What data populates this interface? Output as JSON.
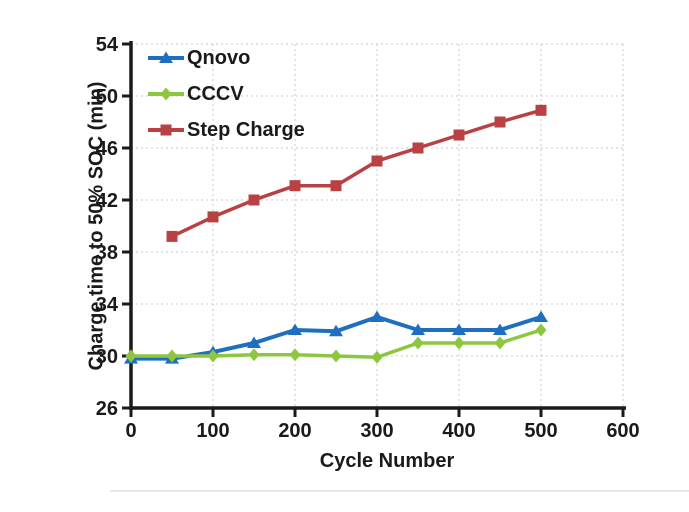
{
  "figure": {
    "background": "#ffffff",
    "divider_color": "#e8e8e8"
  },
  "chart_data": {
    "type": "line",
    "title": "",
    "xlabel": "Cycle Number",
    "ylabel": "Charge time to 50% SOC (min)",
    "xlim": [
      0,
      600
    ],
    "ylim": [
      26,
      54
    ],
    "xticks": [
      0,
      100,
      200,
      300,
      400,
      500,
      600
    ],
    "yticks": [
      26,
      30,
      34,
      38,
      42,
      46,
      50,
      54
    ],
    "grid": true,
    "grid_color": "#c9c9c9",
    "axis_color": "#1a1a1a",
    "legend_position": "inside top-left",
    "series": [
      {
        "name": "Qnovo",
        "color": "#1f6fc0",
        "marker": "triangle",
        "line_width": 4,
        "x": [
          0,
          50,
          100,
          150,
          200,
          250,
          300,
          350,
          400,
          450,
          500
        ],
        "y": [
          29.8,
          29.8,
          30.3,
          31,
          32,
          31.9,
          33,
          32,
          32,
          32,
          33
        ]
      },
      {
        "name": "CCCV",
        "color": "#8dc63f",
        "marker": "diamond",
        "line_width": 3.5,
        "x": [
          0,
          50,
          100,
          150,
          200,
          250,
          300,
          350,
          400,
          450,
          500
        ],
        "y": [
          30,
          30,
          30,
          30.1,
          30.1,
          30,
          29.9,
          31,
          31,
          31,
          32
        ]
      },
      {
        "name": "Step Charge",
        "color": "#b94143",
        "marker": "square",
        "line_width": 3.5,
        "x": [
          50,
          100,
          150,
          200,
          250,
          300,
          350,
          400,
          450,
          500
        ],
        "y": [
          39.2,
          40.7,
          42,
          43.1,
          43.1,
          45,
          46,
          47,
          48,
          48.9
        ]
      }
    ]
  }
}
